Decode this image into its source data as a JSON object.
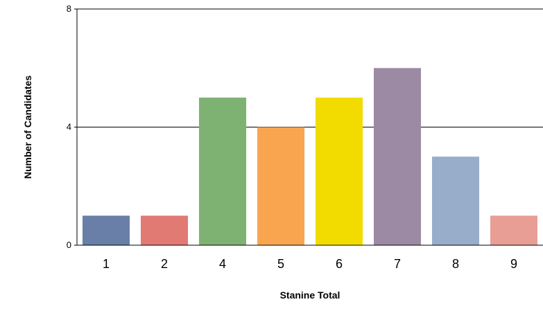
{
  "chart_data": {
    "type": "bar",
    "title": "",
    "xlabel": "Stanine Total",
    "ylabel": "Number of Candidates",
    "categories": [
      "1",
      "2",
      "4",
      "5",
      "6",
      "7",
      "8",
      "9"
    ],
    "values": [
      1,
      1,
      5,
      4,
      5,
      6,
      3,
      1
    ],
    "colors": [
      "#6a7fa7",
      "#e07a73",
      "#7db273",
      "#f9a550",
      "#f2dc00",
      "#9c8aa5",
      "#98adc9",
      "#e89e94"
    ],
    "ylim": [
      0,
      8
    ],
    "yticks": [
      "0",
      "4",
      "8"
    ],
    "grid": true,
    "legend": "none"
  }
}
